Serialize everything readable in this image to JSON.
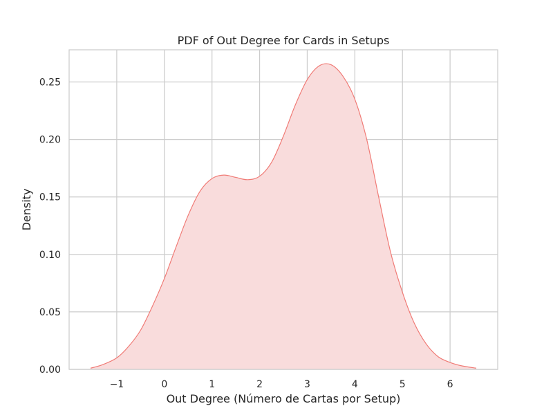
{
  "chart_data": {
    "type": "area",
    "title": "PDF of Out Degree for Cards in Setups",
    "xlabel": "Out Degree (Número de Cartas por Setup)",
    "ylabel": "Density",
    "xlim": [
      -2.0,
      7.0
    ],
    "ylim": [
      0.0,
      0.278
    ],
    "xticks": [
      -1,
      0,
      1,
      2,
      3,
      4,
      5,
      6
    ],
    "xtick_labels": [
      "−1",
      "0",
      "1",
      "2",
      "3",
      "4",
      "5",
      "6"
    ],
    "yticks": [
      0.0,
      0.05,
      0.1,
      0.15,
      0.2,
      0.25
    ],
    "ytick_labels": [
      "0.00",
      "0.05",
      "0.10",
      "0.15",
      "0.20",
      "0.25"
    ],
    "grid": true,
    "series": [
      {
        "color": "#f07b76",
        "fill": "#f9dcdc",
        "x": [
          -1.55,
          -1.3,
          -1.0,
          -0.75,
          -0.5,
          -0.25,
          0.0,
          0.25,
          0.5,
          0.75,
          1.0,
          1.25,
          1.5,
          1.75,
          2.0,
          2.25,
          2.5,
          2.75,
          3.0,
          3.25,
          3.5,
          3.75,
          4.0,
          4.25,
          4.5,
          4.75,
          5.0,
          5.25,
          5.5,
          5.75,
          6.0,
          6.25,
          6.55
        ],
        "y": [
          0.001,
          0.004,
          0.01,
          0.02,
          0.034,
          0.055,
          0.079,
          0.107,
          0.134,
          0.155,
          0.166,
          0.169,
          0.167,
          0.165,
          0.168,
          0.18,
          0.203,
          0.23,
          0.252,
          0.264,
          0.265,
          0.255,
          0.235,
          0.2,
          0.15,
          0.102,
          0.067,
          0.04,
          0.022,
          0.011,
          0.006,
          0.003,
          0.001
        ]
      }
    ]
  }
}
